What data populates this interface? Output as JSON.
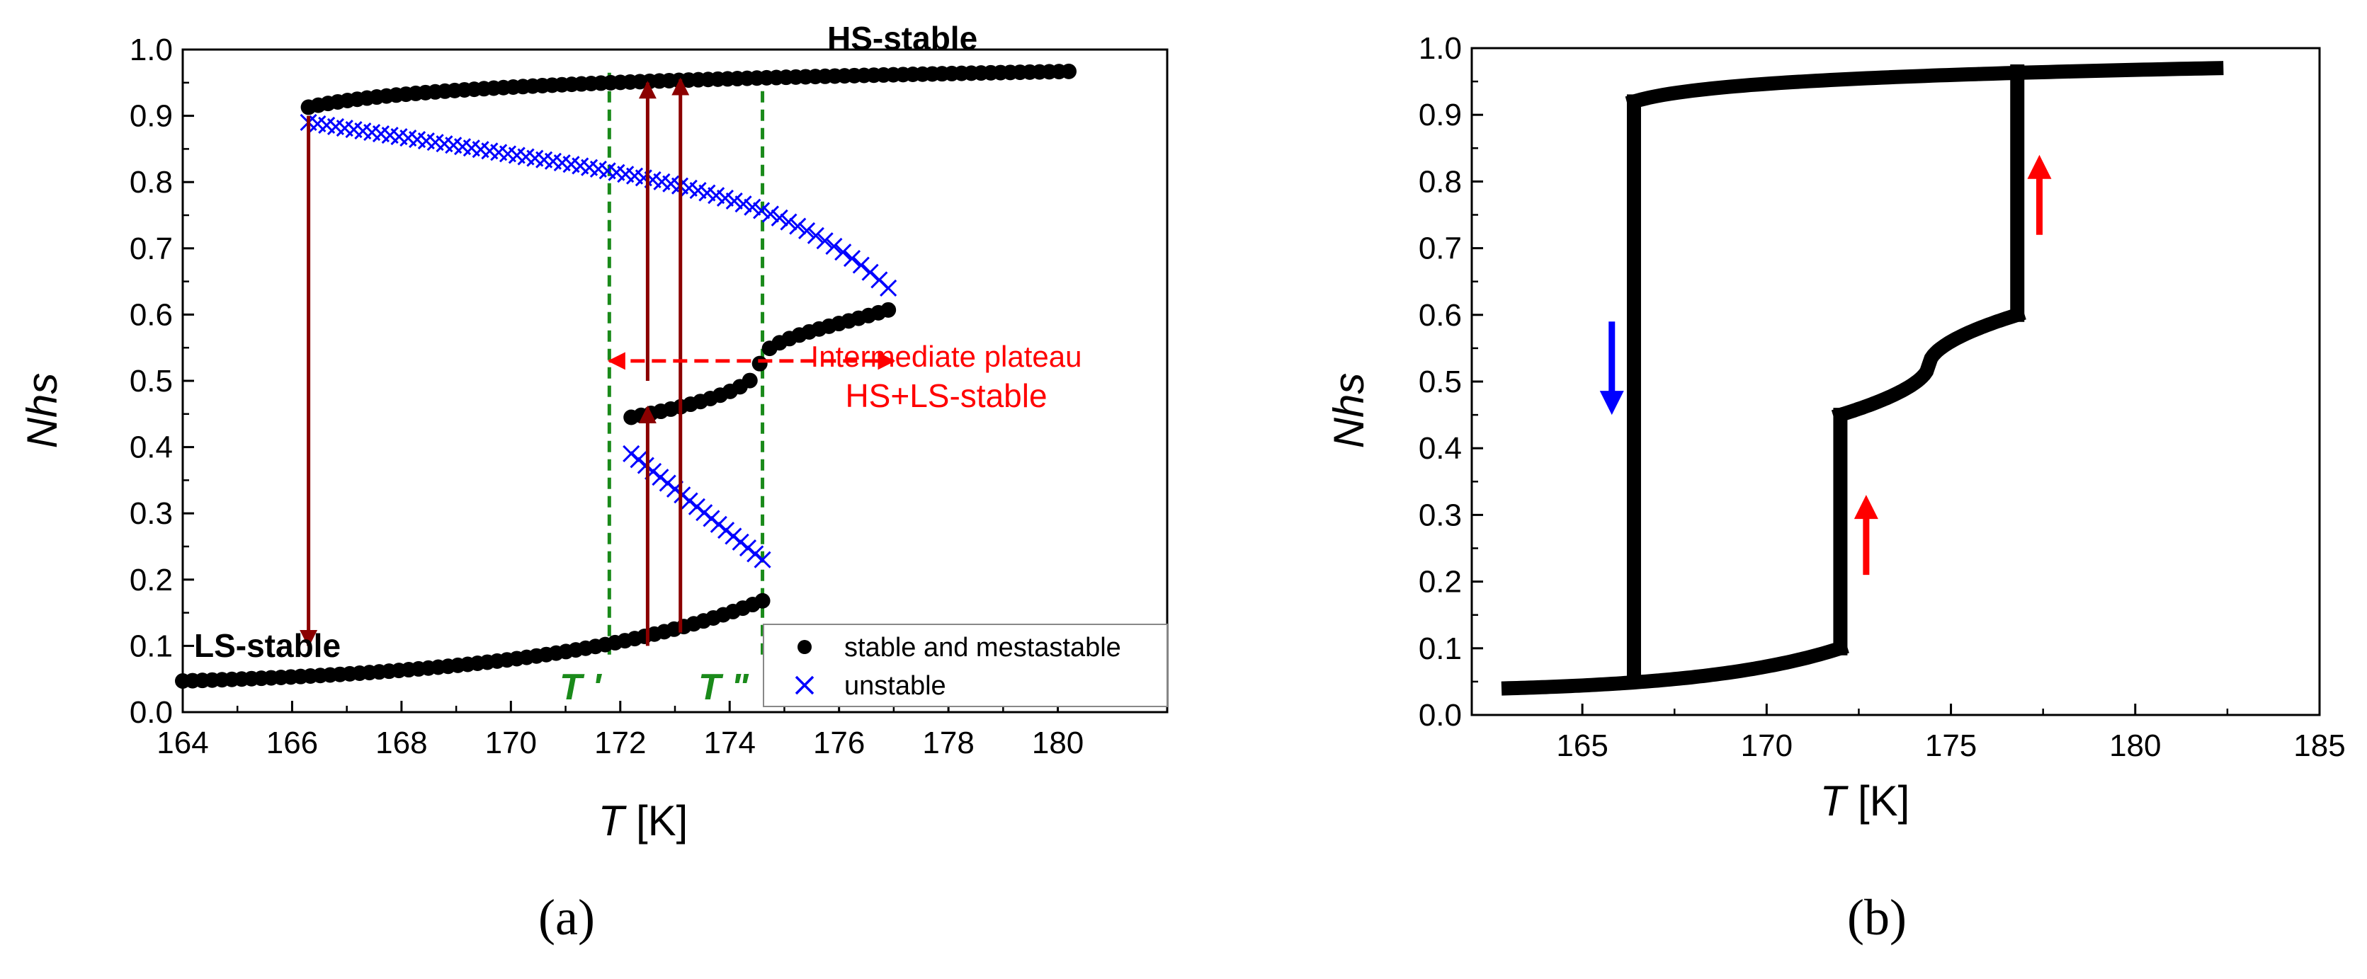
{
  "chart_data": [
    {
      "panel": "(a)",
      "type": "scatter",
      "xlabel_italic": "T",
      "xlabel_rest": " [K]",
      "ylabel": "Nhs",
      "xlim": [
        164,
        182
      ],
      "ylim": [
        0.0,
        1.0
      ],
      "xticks": [
        "164",
        "166",
        "168",
        "170",
        "172",
        "174",
        "176",
        "178",
        "180"
      ],
      "yticks": [
        "0.0",
        "0.1",
        "0.2",
        "0.3",
        "0.4",
        "0.5",
        "0.6",
        "0.7",
        "0.8",
        "0.9",
        "1.0"
      ],
      "series": [
        {
          "name": "stable and mestastable",
          "marker": "filled-circle",
          "color": "#000000",
          "branches": [
            {
              "name": "LS branch",
              "t_start": 164.0,
              "t_end": 174.6,
              "n_start": 0.047,
              "n_end": 0.168,
              "curve": "exp-rise"
            },
            {
              "name": "intermediate branch",
              "t_start": 172.2,
              "t_end": 176.9,
              "n_start": 0.445,
              "n_end": 0.607,
              "curve": "s-shape"
            },
            {
              "name": "HS branch",
              "t_start": 166.3,
              "t_end": 180.2,
              "n_start": 0.913,
              "n_end": 0.967,
              "curve": "log-rise"
            }
          ]
        },
        {
          "name": "unstable",
          "marker": "x",
          "color": "#0000ff",
          "branches": [
            {
              "name": "upper unstable",
              "t_start": 166.3,
              "t_end": 176.9,
              "n_start": 0.89,
              "n_end": 0.64,
              "curve": "sqrt-fall"
            },
            {
              "name": "lower unstable",
              "t_start": 172.2,
              "t_end": 174.6,
              "n_start": 0.39,
              "n_end": 0.23,
              "curve": "linear"
            }
          ]
        }
      ],
      "vlines": [
        {
          "label": "T '",
          "x": 171.8,
          "color": "#1a8a1a",
          "style": "dashed"
        },
        {
          "label": "T \"",
          "x": 174.6,
          "color": "#1a8a1a",
          "style": "dashed"
        }
      ],
      "arrows": [
        {
          "x": 166.3,
          "from": 0.9,
          "to": 0.1,
          "color": "#8b0000"
        },
        {
          "x": 172.5,
          "from": 0.1,
          "to": 0.46,
          "color": "#8b0000"
        },
        {
          "x": 172.5,
          "from": 0.5,
          "to": 0.95,
          "color": "#8b0000"
        },
        {
          "x": 173.1,
          "from": 0.12,
          "to": 0.955,
          "color": "#8b0000"
        }
      ],
      "plateau_arrow": {
        "x_from": 171.8,
        "x_to": 177.0,
        "y": 0.53,
        "color": "#ff0000"
      },
      "annotations": {
        "hs_stable": "HS-stable",
        "ls_stable": "LS-stable",
        "plateau_line1": "Intermediate plateau",
        "plateau_line2": "HS+LS-stable",
        "t_prime": "T '",
        "t_double_prime": "T \""
      },
      "legend": {
        "position": "bottom-right",
        "entries": [
          "stable and mestastable",
          "unstable"
        ]
      }
    },
    {
      "panel": "(b)",
      "type": "line",
      "xlabel_italic": "T",
      "xlabel_rest": " [K]",
      "ylabel": "Nhs",
      "xlim": [
        162,
        185
      ],
      "ylim": [
        0.0,
        1.0
      ],
      "xticks": [
        "165",
        "170",
        "175",
        "180",
        "185"
      ],
      "yticks": [
        "0.0",
        "0.1",
        "0.2",
        "0.3",
        "0.4",
        "0.5",
        "0.6",
        "0.7",
        "0.8",
        "0.9",
        "1.0"
      ],
      "hysteresis_loop": {
        "color": "#000000",
        "segments": [
          {
            "name": "LS heating",
            "t_start": 163.0,
            "t_end": 172.0,
            "n_start": 0.04,
            "n_end": 0.1
          },
          {
            "name": "jump 1",
            "t": 172.0,
            "n_from": 0.1,
            "n_to": 0.45
          },
          {
            "name": "plateau",
            "t_start": 172.0,
            "t_end": 176.8,
            "n_start": 0.45,
            "n_end": 0.6
          },
          {
            "name": "jump 2",
            "t": 176.8,
            "n_from": 0.6,
            "n_to": 0.965
          },
          {
            "name": "HS branch",
            "t_start": 166.4,
            "t_end": 182.2,
            "n_start": 0.92,
            "n_end": 0.97
          },
          {
            "name": "cooling jump",
            "t": 166.4,
            "n_from": 0.92,
            "n_to": 0.06
          }
        ]
      },
      "arrows": [
        {
          "x": 165.8,
          "from": 0.59,
          "to": 0.45,
          "color": "#0000ff"
        },
        {
          "x": 172.7,
          "from": 0.21,
          "to": 0.33,
          "color": "#ff0000"
        },
        {
          "x": 177.4,
          "from": 0.72,
          "to": 0.84,
          "color": "#ff0000"
        }
      ]
    }
  ]
}
